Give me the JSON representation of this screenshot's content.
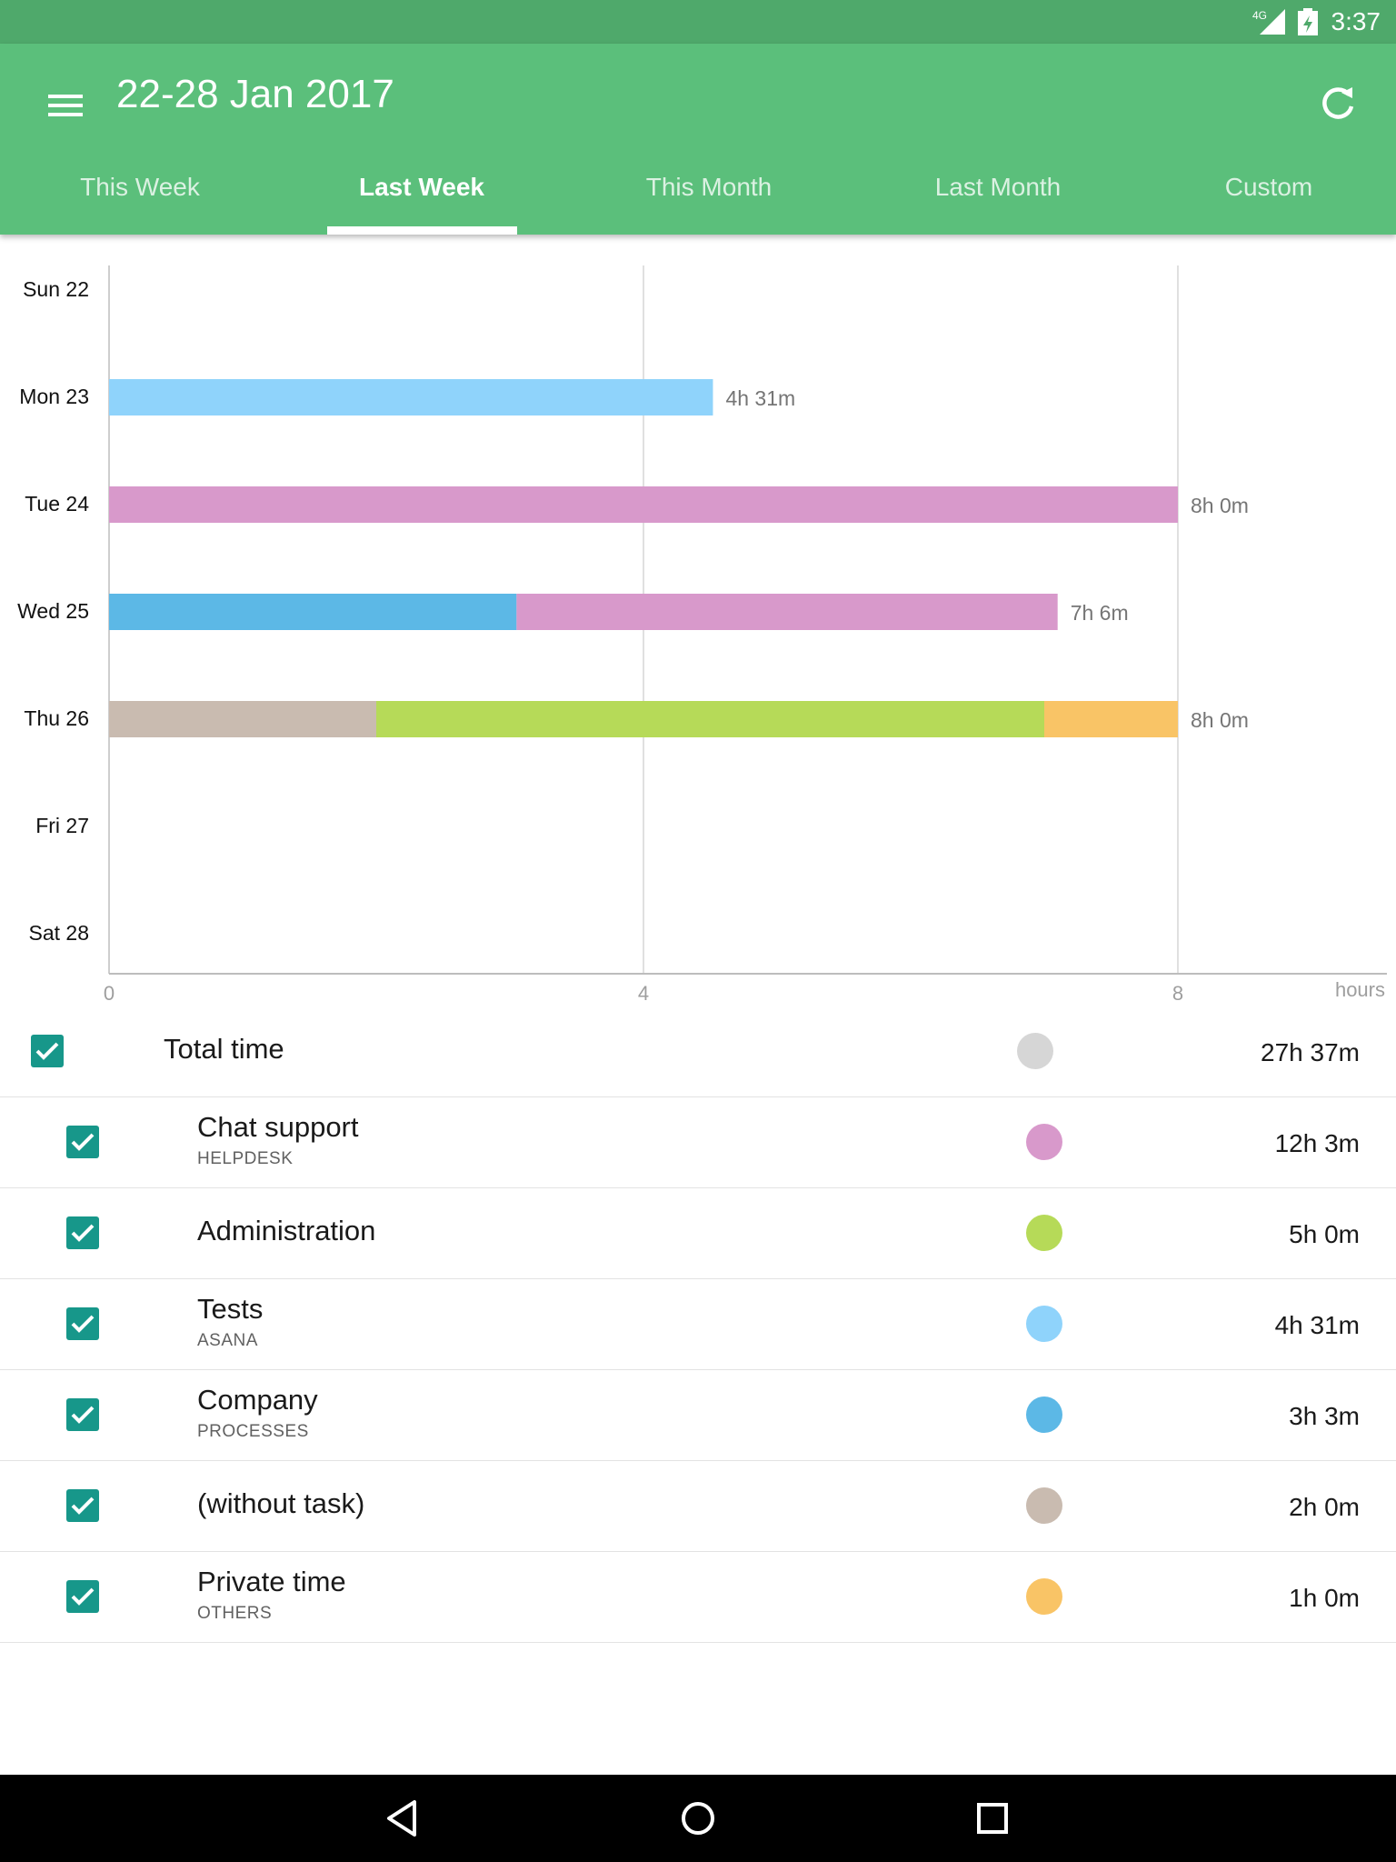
{
  "status_bar": {
    "time": "3:37",
    "network": "4G"
  },
  "app_bar": {
    "title": "22-28 Jan 2017",
    "tabs": [
      {
        "label": "This Week",
        "active": false
      },
      {
        "label": "Last Week",
        "active": true
      },
      {
        "label": "This Month",
        "active": false
      },
      {
        "label": "Last Month",
        "active": false
      },
      {
        "label": "Custom",
        "active": false
      }
    ]
  },
  "chart_data": {
    "type": "bar",
    "orientation": "horizontal",
    "stacked": true,
    "categories": [
      "Sun 22",
      "Mon 23",
      "Tue 24",
      "Wed 25",
      "Thu 26",
      "Fri 27",
      "Sat 28"
    ],
    "series": [
      {
        "name": "Tests",
        "color": "#8fd3fb",
        "values": [
          0,
          4.52,
          0,
          0,
          0,
          0,
          0
        ]
      },
      {
        "name": "Company",
        "color": "#5cb8e6",
        "values": [
          0,
          0,
          0,
          3.05,
          0,
          0,
          0
        ]
      },
      {
        "name": "Chat support",
        "color": "#d899cb",
        "values": [
          0,
          0,
          8.0,
          4.05,
          0,
          0,
          0
        ]
      },
      {
        "name": "(without task)",
        "color": "#c9bbb0",
        "values": [
          0,
          0,
          0,
          0,
          2.0,
          0,
          0
        ]
      },
      {
        "name": "Administration",
        "color": "#b6da58",
        "values": [
          0,
          0,
          0,
          0,
          5.0,
          0,
          0
        ]
      },
      {
        "name": "Private time",
        "color": "#f9c466",
        "values": [
          0,
          0,
          0,
          0,
          1.0,
          0,
          0
        ]
      }
    ],
    "data_labels": [
      "",
      "4h 31m",
      "8h 0m",
      "7h 6m",
      "8h 0m",
      "",
      ""
    ],
    "x_ticks": [
      "0",
      "4",
      "8"
    ],
    "xlabel": "hours",
    "xlim": [
      0,
      9.55
    ],
    "grid": true,
    "legend": "none"
  },
  "summary": {
    "total": {
      "label": "Total time",
      "time": "27h 37m",
      "color": "#d6d6d6",
      "checked": true
    },
    "items": [
      {
        "name": "Chat support",
        "project": "HELPDESK",
        "time": "12h 3m",
        "color": "#d899cb",
        "checked": true
      },
      {
        "name": "Administration",
        "project": "",
        "time": "5h 0m",
        "color": "#b6da58",
        "checked": true
      },
      {
        "name": "Tests",
        "project": "ASANA",
        "time": "4h 31m",
        "color": "#8fd3fb",
        "checked": true
      },
      {
        "name": "Company",
        "project": "PROCESSES",
        "time": "3h 3m",
        "color": "#5cb8e6",
        "checked": true
      },
      {
        "name": "(without task)",
        "project": "",
        "time": "2h 0m",
        "color": "#c9bbb0",
        "checked": true
      },
      {
        "name": "Private time",
        "project": "OTHERS",
        "time": "1h 0m",
        "color": "#f9c466",
        "checked": true
      }
    ]
  },
  "nav_bar": {
    "icons": [
      "back-icon",
      "home-icon",
      "recents-icon"
    ]
  },
  "colors": {
    "app_bar": "#5bbf7b",
    "status_bar": "#4fa96b",
    "checkbox": "#17978a",
    "accent_white": "#ffffff"
  }
}
